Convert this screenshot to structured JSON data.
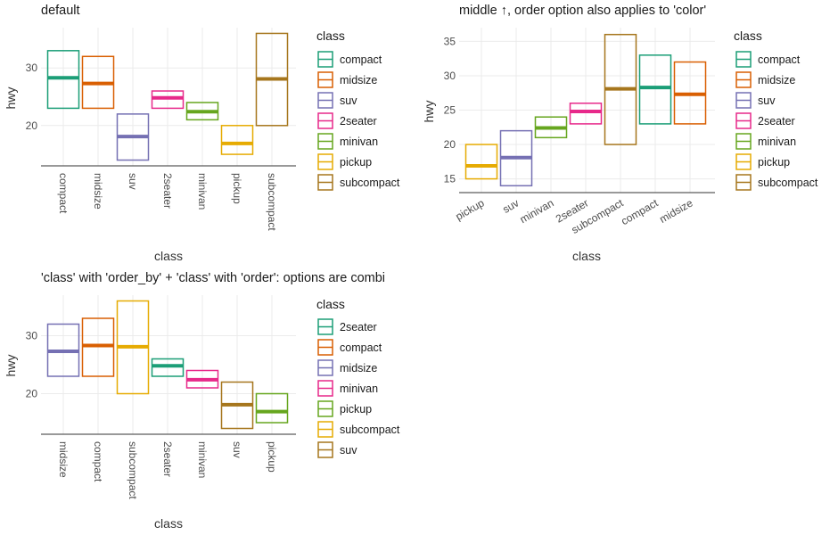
{
  "chart_data": [
    {
      "type": "crossbar",
      "title": "default",
      "xlabel": "class",
      "ylabel": "hwy",
      "ylim": [
        13,
        37
      ],
      "yticks": [
        20,
        30
      ],
      "x_tick_angle": -90,
      "legend": {
        "title": "class",
        "position": "right"
      },
      "categories": [
        "compact",
        "midsize",
        "suv",
        "2seater",
        "minivan",
        "pickup",
        "subcompact"
      ],
      "series": [
        {
          "category": "compact",
          "ymin": 23,
          "y": 28.3,
          "ymax": 33,
          "color": "#1B9E77"
        },
        {
          "category": "midsize",
          "ymin": 23,
          "y": 27.3,
          "ymax": 32,
          "color": "#D95F02"
        },
        {
          "category": "suv",
          "ymin": 14,
          "y": 18.1,
          "ymax": 22,
          "color": "#7570B3"
        },
        {
          "category": "2seater",
          "ymin": 23,
          "y": 24.8,
          "ymax": 26,
          "color": "#E7298A"
        },
        {
          "category": "minivan",
          "ymin": 21,
          "y": 22.4,
          "ymax": 24,
          "color": "#66A61E"
        },
        {
          "category": "pickup",
          "ymin": 15,
          "y": 16.9,
          "ymax": 20,
          "color": "#E6AB02"
        },
        {
          "category": "subcompact",
          "ymin": 20,
          "y": 28.1,
          "ymax": 36,
          "color": "#A6761D"
        }
      ]
    },
    {
      "type": "crossbar",
      "title": "middle ↑, order option also applies to 'color'",
      "xlabel": "class",
      "ylabel": "hwy",
      "ylim": [
        13,
        37
      ],
      "yticks": [
        15,
        20,
        25,
        30,
        35
      ],
      "x_tick_angle": -30,
      "legend": {
        "title": "class",
        "position": "right"
      },
      "categories": [
        "pickup",
        "suv",
        "minivan",
        "2seater",
        "subcompact",
        "compact",
        "midsize"
      ],
      "series": [
        {
          "category": "pickup",
          "ymin": 15,
          "y": 16.9,
          "ymax": 20,
          "color": "#E6AB02"
        },
        {
          "category": "suv",
          "ymin": 14,
          "y": 18.1,
          "ymax": 22,
          "color": "#7570B3"
        },
        {
          "category": "minivan",
          "ymin": 21,
          "y": 22.4,
          "ymax": 24,
          "color": "#66A61E"
        },
        {
          "category": "2seater",
          "ymin": 23,
          "y": 24.8,
          "ymax": 26,
          "color": "#E7298A"
        },
        {
          "category": "subcompact",
          "ymin": 20,
          "y": 28.1,
          "ymax": 36,
          "color": "#A6761D"
        },
        {
          "category": "compact",
          "ymin": 23,
          "y": 28.3,
          "ymax": 33,
          "color": "#1B9E77"
        },
        {
          "category": "midsize",
          "ymin": 23,
          "y": 27.3,
          "ymax": 32,
          "color": "#D95F02"
        }
      ],
      "legend_entries": [
        {
          "label": "compact",
          "color": "#1B9E77"
        },
        {
          "label": "midsize",
          "color": "#D95F02"
        },
        {
          "label": "suv",
          "color": "#7570B3"
        },
        {
          "label": "2seater",
          "color": "#E7298A"
        },
        {
          "label": "minivan",
          "color": "#66A61E"
        },
        {
          "label": "pickup",
          "color": "#E6AB02"
        },
        {
          "label": "subcompact",
          "color": "#A6761D"
        }
      ]
    },
    {
      "type": "crossbar",
      "title": "'class' with 'order_by' + 'class' with 'order': options are combi",
      "xlabel": "class",
      "ylabel": "hwy",
      "ylim": [
        13,
        37
      ],
      "yticks": [
        20,
        30
      ],
      "x_tick_angle": -90,
      "legend": {
        "title": "class",
        "position": "right"
      },
      "categories": [
        "midsize",
        "compact",
        "subcompact",
        "2seater",
        "minivan",
        "suv",
        "pickup"
      ],
      "series": [
        {
          "category": "midsize",
          "ymin": 23,
          "y": 27.3,
          "ymax": 32,
          "color": "#7570B3"
        },
        {
          "category": "compact",
          "ymin": 23,
          "y": 28.3,
          "ymax": 33,
          "color": "#D95F02"
        },
        {
          "category": "subcompact",
          "ymin": 20,
          "y": 28.1,
          "ymax": 36,
          "color": "#E6AB02"
        },
        {
          "category": "2seater",
          "ymin": 23,
          "y": 24.8,
          "ymax": 26,
          "color": "#1B9E77"
        },
        {
          "category": "minivan",
          "ymin": 21,
          "y": 22.4,
          "ymax": 24,
          "color": "#E7298A"
        },
        {
          "category": "suv",
          "ymin": 14,
          "y": 18.1,
          "ymax": 22,
          "color": "#A6761D"
        },
        {
          "category": "pickup",
          "ymin": 15,
          "y": 16.9,
          "ymax": 20,
          "color": "#66A61E"
        }
      ],
      "legend_entries": [
        {
          "label": "2seater",
          "color": "#1B9E77"
        },
        {
          "label": "compact",
          "color": "#D95F02"
        },
        {
          "label": "midsize",
          "color": "#7570B3"
        },
        {
          "label": "minivan",
          "color": "#E7298A"
        },
        {
          "label": "pickup",
          "color": "#66A61E"
        },
        {
          "label": "subcompact",
          "color": "#E6AB02"
        },
        {
          "label": "suv",
          "color": "#A6761D"
        }
      ]
    }
  ]
}
